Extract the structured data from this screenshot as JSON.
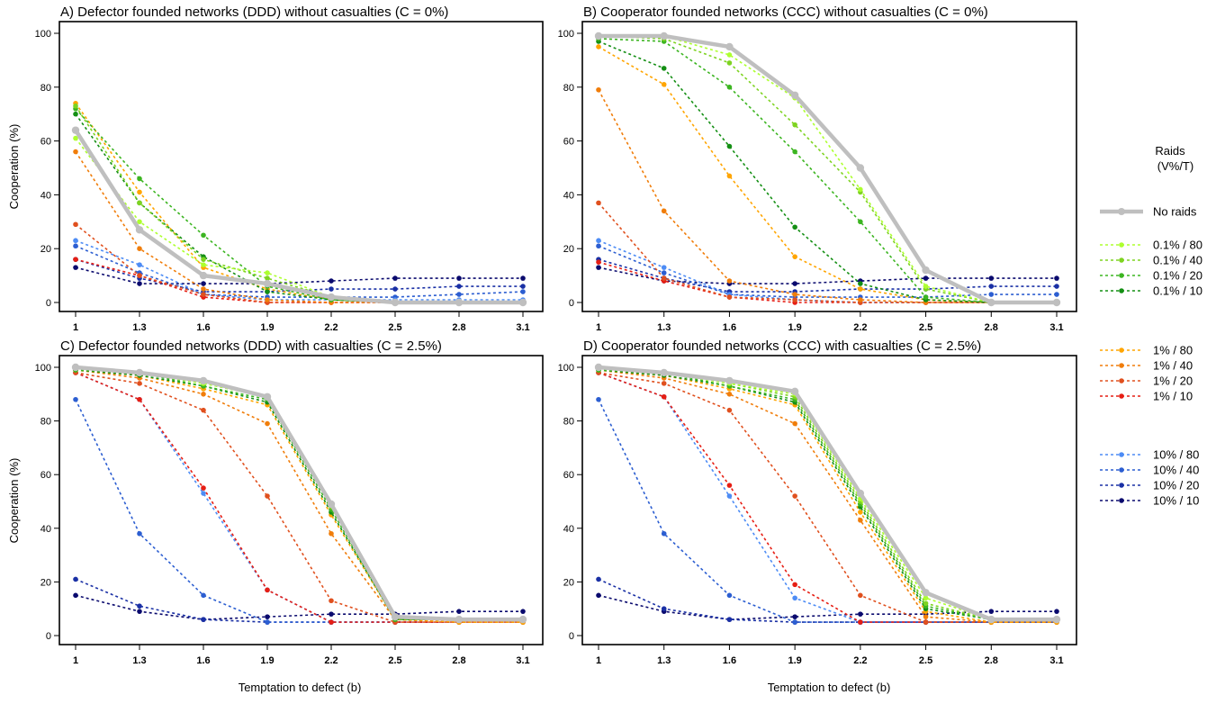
{
  "figure": {
    "xlabel": "Temptation to defect (b)",
    "ylabel": "Cooperation (%)"
  },
  "legend": {
    "title_line1": "Raids",
    "title_line2": "(V%/T)",
    "groups": [
      [
        {
          "label": "No raids",
          "color": "#bfbfbf",
          "style": "solid"
        }
      ],
      [
        {
          "label": "0.1% / 80",
          "color": "#adff2f"
        },
        {
          "label": "0.1% / 40",
          "color": "#7ed321"
        },
        {
          "label": "0.1% / 20",
          "color": "#3cb521"
        },
        {
          "label": "0.1% / 10",
          "color": "#148f14"
        }
      ],
      [
        {
          "label": "1% / 80",
          "color": "#ffa500"
        },
        {
          "label": "1% / 40",
          "color": "#f07d0a"
        },
        {
          "label": "1% / 20",
          "color": "#e0501e"
        },
        {
          "label": "1% / 10",
          "color": "#e61e14"
        }
      ],
      [
        {
          "label": "10% / 80",
          "color": "#4d8cf5"
        },
        {
          "label": "10% / 40",
          "color": "#2c5ed1"
        },
        {
          "label": "10% / 20",
          "color": "#1a30a5"
        },
        {
          "label": "10% / 10",
          "color": "#0a0a6e"
        }
      ]
    ]
  },
  "chart_data": [
    {
      "type": "line",
      "title": "A) Defector founded networks (DDD) without casualties (C = 0%)",
      "x": [
        1,
        1.3,
        1.6,
        1.9,
        2.2,
        2.5,
        2.8,
        3.1
      ],
      "xticklabels": [
        "1",
        "1.3",
        "1.6",
        "1.9",
        "2.2",
        "2.5",
        "2.8",
        "3.1"
      ],
      "ylim": [
        0,
        100
      ],
      "yticks": [
        0,
        20,
        40,
        60,
        80,
        100
      ],
      "series": [
        {
          "name": "No raids",
          "values": [
            64,
            27,
            10,
            7,
            2,
            0,
            0,
            0
          ]
        },
        {
          "name": "0.1% / 80",
          "values": [
            61,
            30,
            14,
            11,
            2,
            0,
            0,
            0
          ]
        },
        {
          "name": "0.1% / 40",
          "values": [
            73,
            37,
            16,
            9,
            2,
            0,
            0,
            0
          ]
        },
        {
          "name": "0.1% / 20",
          "values": [
            72,
            46,
            25,
            6,
            1,
            0,
            0,
            0
          ]
        },
        {
          "name": "0.1% / 10",
          "values": [
            70,
            37,
            17,
            4,
            1,
            0,
            0,
            0
          ]
        },
        {
          "name": "1% / 80",
          "values": [
            74,
            41,
            13,
            5,
            1,
            0,
            0,
            0
          ]
        },
        {
          "name": "1% / 40",
          "values": [
            56,
            20,
            5,
            1,
            0,
            0,
            0,
            0
          ]
        },
        {
          "name": "1% / 20",
          "values": [
            29,
            10,
            3,
            0,
            0,
            0,
            0,
            0
          ]
        },
        {
          "name": "1% / 10",
          "values": [
            16,
            10,
            2,
            0,
            0,
            0,
            0,
            0
          ]
        },
        {
          "name": "10% / 80",
          "values": [
            23,
            14,
            3,
            1,
            1,
            1,
            1,
            1
          ]
        },
        {
          "name": "10% / 40",
          "values": [
            21,
            11,
            3,
            2,
            2,
            2,
            3,
            4
          ]
        },
        {
          "name": "10% / 20",
          "values": [
            16,
            9,
            4,
            4,
            5,
            5,
            6,
            6
          ]
        },
        {
          "name": "10% / 10",
          "values": [
            13,
            7,
            7,
            7,
            8,
            9,
            9,
            9
          ]
        }
      ]
    },
    {
      "type": "line",
      "title": "B) Cooperator founded networks (CCC) without casualties (C = 0%)",
      "x": [
        1,
        1.3,
        1.6,
        1.9,
        2.2,
        2.5,
        2.8,
        3.1
      ],
      "xticklabels": [
        "1",
        "1.3",
        "1.6",
        "1.9",
        "2.2",
        "2.5",
        "2.8",
        "3.1"
      ],
      "ylim": [
        0,
        100
      ],
      "yticks": [
        0,
        20,
        40,
        60,
        80,
        100
      ],
      "series": [
        {
          "name": "No raids",
          "values": [
            99,
            99,
            95,
            77,
            50,
            12,
            0,
            0
          ]
        },
        {
          "name": "0.1% / 80",
          "values": [
            99,
            99,
            92,
            76,
            42,
            6,
            0,
            0
          ]
        },
        {
          "name": "0.1% / 40",
          "values": [
            99,
            98,
            89,
            66,
            41,
            5,
            0,
            0
          ]
        },
        {
          "name": "0.1% / 20",
          "values": [
            98,
            97,
            80,
            56,
            30,
            2,
            0,
            0
          ]
        },
        {
          "name": "0.1% / 10",
          "values": [
            97,
            87,
            58,
            28,
            7,
            1,
            0,
            0
          ]
        },
        {
          "name": "1% / 80",
          "values": [
            95,
            81,
            47,
            17,
            5,
            1,
            0,
            0
          ]
        },
        {
          "name": "1% / 40",
          "values": [
            79,
            34,
            8,
            3,
            1,
            0,
            0,
            0
          ]
        },
        {
          "name": "1% / 20",
          "values": [
            37,
            9,
            2,
            1,
            0,
            0,
            0,
            0
          ]
        },
        {
          "name": "1% / 10",
          "values": [
            15,
            8,
            2,
            0,
            0,
            0,
            0,
            0
          ]
        },
        {
          "name": "10% / 80",
          "values": [
            23,
            13,
            3,
            1,
            0,
            0,
            0,
            0
          ]
        },
        {
          "name": "10% / 40",
          "values": [
            21,
            11,
            3,
            2,
            2,
            2,
            3,
            3
          ]
        },
        {
          "name": "10% / 20",
          "values": [
            16,
            9,
            4,
            4,
            5,
            5,
            6,
            6
          ]
        },
        {
          "name": "10% / 10",
          "values": [
            13,
            8,
            7,
            7,
            8,
            9,
            9,
            9
          ]
        }
      ]
    },
    {
      "type": "line",
      "title": "C) Defector founded networks (DDD) with casualties (C = 2.5%)",
      "x": [
        1,
        1.3,
        1.6,
        1.9,
        2.2,
        2.5,
        2.8,
        3.1
      ],
      "xticklabels": [
        "1",
        "1.3",
        "1.6",
        "1.9",
        "2.2",
        "2.5",
        "2.8",
        "3.1"
      ],
      "ylim": [
        0,
        100
      ],
      "yticks": [
        0,
        20,
        40,
        60,
        80,
        100
      ],
      "series": [
        {
          "name": "No raids",
          "values": [
            100,
            98,
            95,
            89,
            49,
            7,
            6,
            6
          ]
        },
        {
          "name": "0.1% / 80",
          "values": [
            100,
            98,
            94,
            89,
            49,
            7,
            6,
            6
          ]
        },
        {
          "name": "0.1% / 40",
          "values": [
            100,
            98,
            94,
            89,
            48,
            7,
            6,
            6
          ]
        },
        {
          "name": "0.1% / 20",
          "values": [
            99,
            98,
            93,
            88,
            47,
            6,
            6,
            6
          ]
        },
        {
          "name": "0.1% / 10",
          "values": [
            99,
            97,
            93,
            87,
            46,
            6,
            6,
            6
          ]
        },
        {
          "name": "1% / 80",
          "values": [
            99,
            97,
            92,
            86,
            45,
            6,
            5,
            5
          ]
        },
        {
          "name": "1% / 40",
          "values": [
            99,
            96,
            90,
            79,
            38,
            6,
            5,
            5
          ]
        },
        {
          "name": "1% / 20",
          "values": [
            98,
            94,
            84,
            52,
            13,
            5,
            5,
            5
          ]
        },
        {
          "name": "1% / 10",
          "values": [
            98,
            88,
            55,
            17,
            5,
            5,
            5,
            5
          ]
        },
        {
          "name": "10% / 80",
          "values": [
            98,
            88,
            53,
            17,
            5,
            5,
            5,
            5
          ]
        },
        {
          "name": "10% / 40",
          "values": [
            88,
            38,
            15,
            5,
            5,
            5,
            5,
            5
          ]
        },
        {
          "name": "10% / 20",
          "values": [
            21,
            11,
            6,
            5,
            5,
            5,
            5,
            5
          ]
        },
        {
          "name": "10% / 10",
          "values": [
            15,
            9,
            6,
            7,
            8,
            8,
            9,
            9
          ]
        }
      ]
    },
    {
      "type": "line",
      "title": "D) Cooperator founded networks (CCC) with casualties (C = 2.5%)",
      "x": [
        1,
        1.3,
        1.6,
        1.9,
        2.2,
        2.5,
        2.8,
        3.1
      ],
      "xticklabels": [
        "1",
        "1.3",
        "1.6",
        "1.9",
        "2.2",
        "2.5",
        "2.8",
        "3.1"
      ],
      "ylim": [
        0,
        100
      ],
      "yticks": [
        0,
        20,
        40,
        60,
        80,
        100
      ],
      "series": [
        {
          "name": "No raids",
          "values": [
            100,
            98,
            95,
            91,
            53,
            16,
            6,
            6
          ]
        },
        {
          "name": "0.1% / 80",
          "values": [
            100,
            98,
            94,
            90,
            51,
            14,
            6,
            6
          ]
        },
        {
          "name": "0.1% / 40",
          "values": [
            100,
            98,
            94,
            89,
            50,
            12,
            6,
            6
          ]
        },
        {
          "name": "0.1% / 20",
          "values": [
            99,
            98,
            93,
            88,
            49,
            11,
            6,
            6
          ]
        },
        {
          "name": "0.1% / 10",
          "values": [
            99,
            97,
            93,
            87,
            48,
            10,
            6,
            6
          ]
        },
        {
          "name": "1% / 80",
          "values": [
            99,
            97,
            92,
            86,
            46,
            9,
            5,
            5
          ]
        },
        {
          "name": "1% / 40",
          "values": [
            99,
            96,
            90,
            79,
            43,
            7,
            5,
            5
          ]
        },
        {
          "name": "1% / 20",
          "values": [
            98,
            94,
            84,
            52,
            15,
            5,
            5,
            5
          ]
        },
        {
          "name": "1% / 10",
          "values": [
            98,
            89,
            56,
            19,
            5,
            5,
            5,
            5
          ]
        },
        {
          "name": "10% / 80",
          "values": [
            98,
            89,
            52,
            14,
            5,
            5,
            5,
            5
          ]
        },
        {
          "name": "10% / 40",
          "values": [
            88,
            38,
            15,
            5,
            5,
            5,
            5,
            5
          ]
        },
        {
          "name": "10% / 20",
          "values": [
            21,
            10,
            6,
            5,
            5,
            5,
            5,
            5
          ]
        },
        {
          "name": "10% / 10",
          "values": [
            15,
            9,
            6,
            7,
            8,
            8,
            9,
            9
          ]
        }
      ]
    }
  ]
}
